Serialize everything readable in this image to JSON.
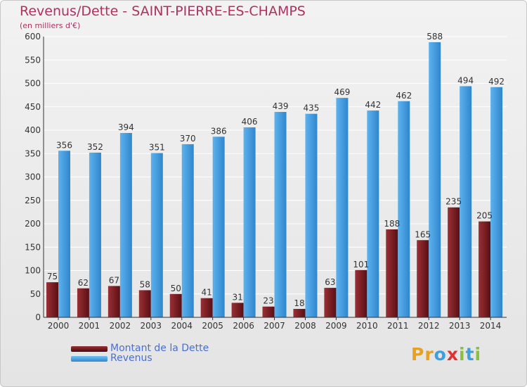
{
  "title": "Revenus/Dette - SAINT-PIERRE-ES-CHAMPS",
  "subtitle": "(en milliers d'€)",
  "logo": {
    "letters": [
      "P",
      "r",
      "o",
      "x",
      "i",
      "t",
      "i"
    ],
    "colors": [
      "#e8a020",
      "#e8a020",
      "#3aa0e0",
      "#e03030",
      "#8ac040",
      "#3aa0e0",
      "#8ac040"
    ]
  },
  "colors": {
    "title": "#b03060",
    "debt_dark": "#5a0f14",
    "debt_light": "#9a3035",
    "revenue_dark": "#2f86cc",
    "revenue_light": "#5db2ee"
  },
  "chart_data": {
    "type": "bar",
    "categories": [
      "2000",
      "2001",
      "2002",
      "2003",
      "2004",
      "2005",
      "2006",
      "2007",
      "2008",
      "2009",
      "2010",
      "2011",
      "2012",
      "2013",
      "2014"
    ],
    "series": [
      {
        "name": "Montant de la Dette",
        "values": [
          75,
          62,
          67,
          58,
          50,
          41,
          31,
          23,
          18,
          63,
          101,
          188,
          165,
          235,
          205
        ]
      },
      {
        "name": "Revenus",
        "values": [
          356,
          352,
          394,
          351,
          370,
          386,
          406,
          439,
          435,
          469,
          442,
          462,
          588,
          494,
          492
        ]
      }
    ],
    "ylim": [
      0,
      600
    ],
    "yticks": [
      0,
      50,
      100,
      150,
      200,
      250,
      300,
      350,
      400,
      450,
      500,
      550,
      600
    ],
    "grid": true,
    "legend": "bottom-left"
  }
}
